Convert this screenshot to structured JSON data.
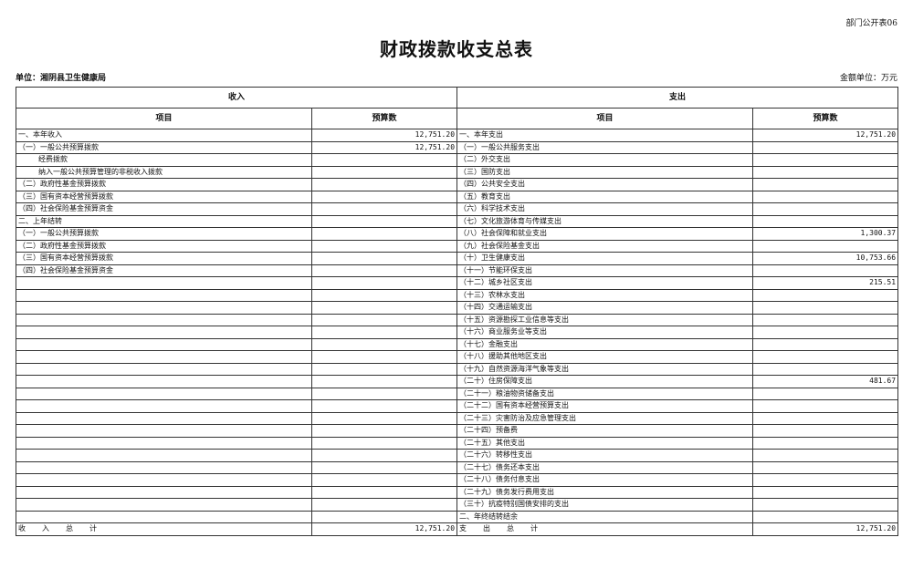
{
  "header": {
    "form_no": "部门公开表06",
    "title": "财政拨款收支总表",
    "unit": "单位：湘阴县卫生健康局",
    "money_unit": "金额单位：万元"
  },
  "columns": {
    "income": "收入",
    "expense": "支出",
    "item": "项目",
    "amount": "预算数"
  },
  "income_rows": [
    {
      "label": "一、本年收入",
      "amount": "12,751.20"
    },
    {
      "label": "（一）一般公共预算拨款",
      "amount": "12,751.20"
    },
    {
      "label": "经费拨款",
      "amount": "",
      "indent": true
    },
    {
      "label": "纳入一般公共预算管理的非税收入拨款",
      "amount": "",
      "indent": true
    },
    {
      "label": "（二）政府性基金预算拨款",
      "amount": ""
    },
    {
      "label": "（三）国有资本经营预算拨款",
      "amount": ""
    },
    {
      "label": "（四）社会保险基金预算资金",
      "amount": ""
    },
    {
      "label": "二、上年结转",
      "amount": ""
    },
    {
      "label": "（一）一般公共预算拨款",
      "amount": ""
    },
    {
      "label": "（二）政府性基金预算拨款",
      "amount": ""
    },
    {
      "label": "（三）国有资本经营预算拨款",
      "amount": ""
    },
    {
      "label": "（四）社会保险基金预算资金",
      "amount": ""
    }
  ],
  "expense_rows": [
    {
      "label": "一、本年支出",
      "amount": "12,751.20"
    },
    {
      "label": "（一）一般公共服务支出",
      "amount": ""
    },
    {
      "label": "（二）外交支出",
      "amount": ""
    },
    {
      "label": "（三）国防支出",
      "amount": ""
    },
    {
      "label": "（四）公共安全支出",
      "amount": ""
    },
    {
      "label": "（五）教育支出",
      "amount": ""
    },
    {
      "label": "（六）科学技术支出",
      "amount": ""
    },
    {
      "label": "（七）文化旅游体育与传媒支出",
      "amount": ""
    },
    {
      "label": "（八）社会保障和就业支出",
      "amount": "1,300.37"
    },
    {
      "label": "（九）社会保险基金支出",
      "amount": ""
    },
    {
      "label": "（十）卫生健康支出",
      "amount": "10,753.66"
    },
    {
      "label": "（十一）节能环保支出",
      "amount": ""
    },
    {
      "label": "（十二）城乡社区支出",
      "amount": "215.51"
    },
    {
      "label": "（十三）农林水支出",
      "amount": ""
    },
    {
      "label": "（十四）交通运输支出",
      "amount": ""
    },
    {
      "label": "（十五）资源勘探工业信息等支出",
      "amount": ""
    },
    {
      "label": "（十六）商业服务业等支出",
      "amount": ""
    },
    {
      "label": "（十七）金融支出",
      "amount": ""
    },
    {
      "label": "（十八）援助其他地区支出",
      "amount": ""
    },
    {
      "label": "（十九）自然资源海洋气象等支出",
      "amount": ""
    },
    {
      "label": "（二十）住房保障支出",
      "amount": "481.67"
    },
    {
      "label": "（二十一）粮油物资储备支出",
      "amount": ""
    },
    {
      "label": "（二十二）国有资本经营预算支出",
      "amount": ""
    },
    {
      "label": "（二十三）灾害防治及应急管理支出",
      "amount": ""
    },
    {
      "label": "（二十四）预备费",
      "amount": ""
    },
    {
      "label": "（二十五）其他支出",
      "amount": ""
    },
    {
      "label": "（二十六）转移性支出",
      "amount": ""
    },
    {
      "label": "（二十七）债务还本支出",
      "amount": ""
    },
    {
      "label": "（二十八）债务付息支出",
      "amount": ""
    },
    {
      "label": "（二十九）债务发行费用支出",
      "amount": ""
    },
    {
      "label": "（三十）抗疫特别国债安排的支出",
      "amount": ""
    },
    {
      "label": "二、年终结转结余",
      "amount": ""
    }
  ],
  "totals": {
    "income_label": "收入总计",
    "income_amount": "12,751.20",
    "expense_label": "支出总计",
    "expense_amount": "12,751.20"
  }
}
